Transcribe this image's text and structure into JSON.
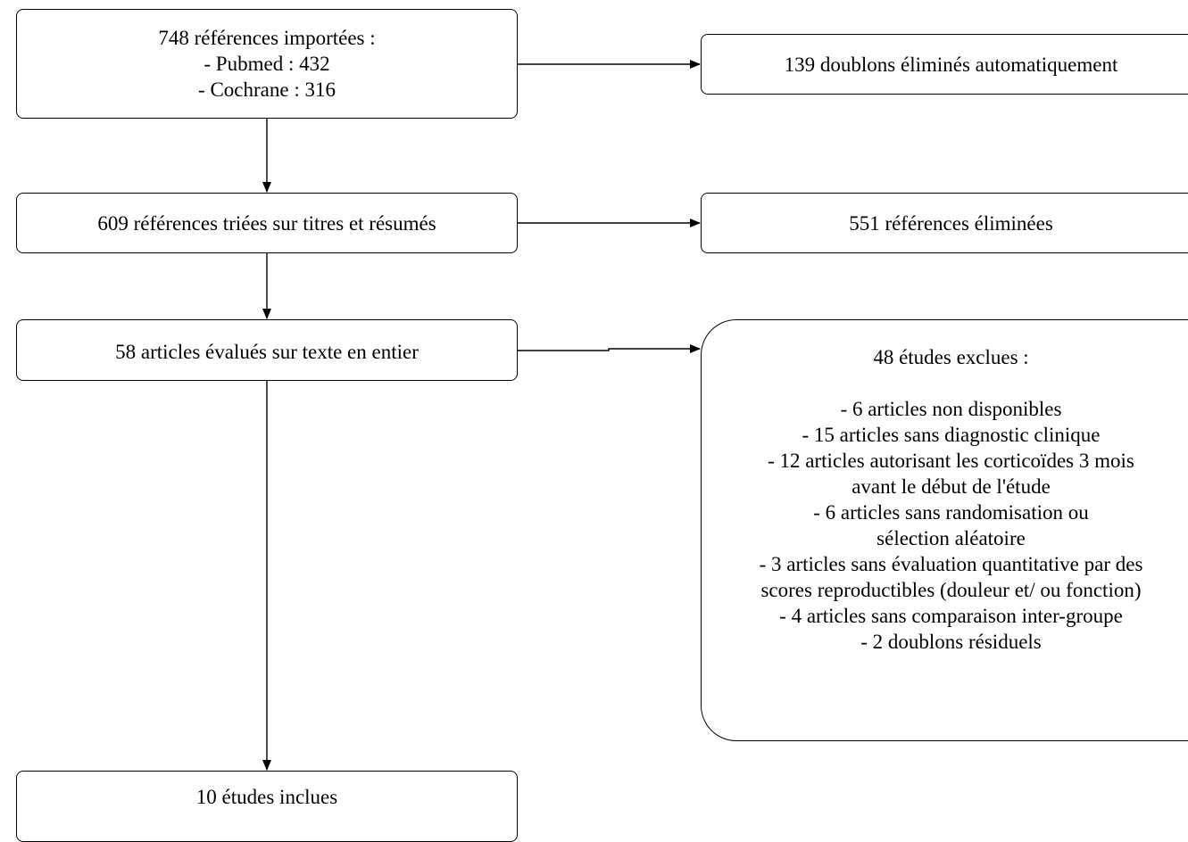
{
  "flow": {
    "imported": {
      "lines": [
        "748 références importées :",
        "- Pubmed : 432",
        "- Cochrane : 316"
      ]
    },
    "duplicates": {
      "text": "139 doublons éliminés automatiquement"
    },
    "screened": {
      "text": "609 références triées sur titres et résumés"
    },
    "eliminated": {
      "text": "551 références éliminées"
    },
    "fulltext": {
      "text": "58 articles évalués sur texte en entier"
    },
    "excluded": {
      "heading": "48 études exclues :",
      "lines": [
        "- 6 articles non disponibles",
        "- 15 articles sans diagnostic clinique",
        "- 12 articles autorisant les corticoïdes 3 mois",
        "avant le début de l'étude",
        "- 6 articles sans randomisation ou",
        "sélection aléatoire",
        "- 3 articles sans évaluation quantitative par des",
        "scores reproductibles (douleur et/ ou fonction)",
        "- 4 articles sans comparaison inter-groupe",
        "- 2 doublons résiduels"
      ]
    },
    "included": {
      "text": "10 études inclues"
    }
  },
  "colors": {
    "stroke": "#000000",
    "background": "#ffffff"
  }
}
